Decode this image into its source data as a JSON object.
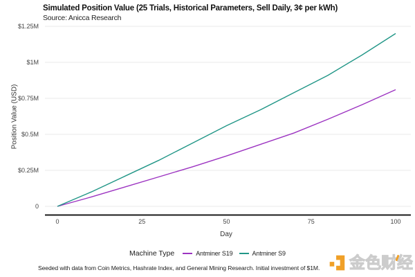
{
  "caption": "Seeded with data from Coin Metrics, Hashrate Index, and General Mining Research. Initial investment of $1M.",
  "watermark": {
    "text": "金色财经",
    "icon": "jinse-logo-icon",
    "accent_color": "#F0A028",
    "text_color": "#f1f1f1"
  },
  "chart_data": {
    "type": "line",
    "title": "Simulated Position Value (25 Trials, Historical Parameters, Sell Daily, 3¢ per kWh)",
    "subtitle": "Source: Anicca Research",
    "xlabel": "Day",
    "ylabel": "Position Value (USD)",
    "xlim": [
      0,
      100
    ],
    "ylim": [
      0,
      1.25
    ],
    "grid": true,
    "legend_title": "Machine Type",
    "legend_position": "bottom",
    "x_ticks": [
      {
        "label": "0",
        "value": 0
      },
      {
        "label": "25",
        "value": 25
      },
      {
        "label": "50",
        "value": 50
      },
      {
        "label": "75",
        "value": 75
      },
      {
        "label": "100",
        "value": 100
      }
    ],
    "y_ticks": [
      {
        "label": "0",
        "value": 0
      },
      {
        "label": "$0.25M",
        "value": 0.25
      },
      {
        "label": "$0.5M",
        "value": 0.5
      },
      {
        "label": "$0.75M",
        "value": 0.75
      },
      {
        "label": "$1M",
        "value": 1
      },
      {
        "label": "$1.25M",
        "value": 1.25
      }
    ],
    "x": [
      0,
      10,
      20,
      30,
      40,
      50,
      60,
      70,
      80,
      90,
      100
    ],
    "series": [
      {
        "name": "Antminer S19",
        "color": "#9c33c1",
        "values": [
          0,
          0.065,
          0.135,
          0.205,
          0.275,
          0.35,
          0.43,
          0.51,
          0.605,
          0.705,
          0.81
        ]
      },
      {
        "name": "Antminer S9",
        "color": "#219687",
        "values": [
          0,
          0.1,
          0.21,
          0.32,
          0.44,
          0.56,
          0.67,
          0.79,
          0.91,
          1.05,
          1.2
        ]
      }
    ],
    "grid_color": "#e8e8e8",
    "axis_line_color": "#1a1a1a"
  }
}
